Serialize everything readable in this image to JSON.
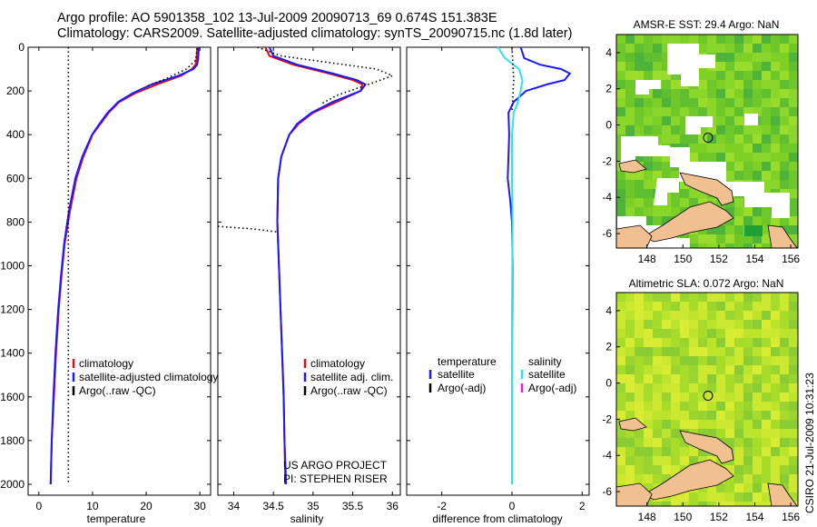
{
  "title_line1": "Argo profile: AO 5901358_102 13-Jul-2009 20090713_69 0.674S 151.383E",
  "title_line2": "Climatology: CARS2009. Satellite-adjusted climatology: synTS_20090715.nc (1.8d later)",
  "credit": "CSIRO 21-Jul-2009 10:31:23",
  "colors": {
    "climatology": "#e01010",
    "satellite": "#1a1aff",
    "sat_salinity": "#30e0f0",
    "argo": "#000000",
    "argo_adj_sal": "#e020e0",
    "land": "#f0c090"
  },
  "chart_data": [
    {
      "id": "temperature",
      "type": "line",
      "xlabel": "temperature",
      "ylabel": "depth",
      "xlim": [
        -2,
        32
      ],
      "ylim": [
        2050,
        0
      ],
      "xticks": [
        "0",
        "10",
        "20",
        "30"
      ],
      "xtick_values": [
        0,
        10,
        20,
        30
      ],
      "yticks": [
        "0",
        "200",
        "400",
        "600",
        "800",
        "1000",
        "1200",
        "1400",
        "1600",
        "1800",
        "2000"
      ],
      "ytick_values": [
        0,
        200,
        400,
        600,
        800,
        1000,
        1200,
        1400,
        1600,
        1800,
        2000
      ],
      "legend": [
        "climatology",
        "satellite-adjusted climatology",
        "Argo(..raw -QC)"
      ],
      "series": [
        {
          "name": "climatology",
          "color": "#e01010",
          "dash": false,
          "x": [
            29.5,
            29.4,
            29.2,
            28.5,
            26.5,
            22,
            18,
            15,
            13,
            11.5,
            10,
            8.3,
            7.0,
            5.8,
            4.8,
            4.2,
            3.7,
            3.2,
            2.8,
            2.4,
            2.2
          ],
          "y": [
            0,
            50,
            80,
            100,
            130,
            170,
            210,
            250,
            300,
            350,
            400,
            500,
            600,
            750,
            900,
            1050,
            1200,
            1400,
            1600,
            1800,
            2000
          ]
        },
        {
          "name": "satellite-adjusted climatology",
          "color": "#1a1aff",
          "dash": false,
          "x": [
            29.8,
            29.7,
            29.5,
            28.8,
            26.0,
            21,
            17.5,
            14.8,
            12.8,
            11.3,
            9.9,
            8.1,
            6.8,
            5.6,
            4.7,
            4.1,
            3.6,
            3.1,
            2.7,
            2.4,
            2.2
          ],
          "y": [
            0,
            50,
            80,
            100,
            130,
            170,
            210,
            250,
            300,
            350,
            400,
            500,
            600,
            750,
            900,
            1050,
            1200,
            1400,
            1600,
            1800,
            2000
          ]
        },
        {
          "name": "Argo raw",
          "color": "#000000",
          "dash": true,
          "x": [
            29.5,
            29.2,
            27.5,
            24,
            20
          ],
          "y": [
            5,
            60,
            100,
            140,
            180
          ]
        },
        {
          "name": "Argo raw -QC",
          "color": "#000000",
          "dash": true,
          "x": [
            5.5,
            5.5
          ],
          "y": [
            0,
            2000
          ]
        }
      ],
      "annotations": []
    },
    {
      "id": "salinity",
      "type": "line",
      "xlabel": "salinity",
      "ylabel": "",
      "xlim": [
        33.8,
        36.1
      ],
      "ylim": [
        2050,
        0
      ],
      "xticks": [
        "34",
        "34.5",
        "35",
        "35.5",
        "36"
      ],
      "xtick_values": [
        34,
        34.5,
        35,
        35.5,
        36
      ],
      "yticks": [],
      "ytick_values": [],
      "legend": [
        "climatology",
        "satellite adj. clim.",
        "Argo(..raw -QC)"
      ],
      "series": [
        {
          "name": "climatology",
          "color": "#e01010",
          "dash": false,
          "x": [
            34.4,
            34.45,
            34.75,
            35.2,
            35.5,
            35.62,
            35.6,
            35.3,
            35.0,
            34.82,
            34.7,
            34.6,
            34.56,
            34.55,
            34.57,
            34.59,
            34.61,
            34.63,
            34.64,
            34.65
          ],
          "y": [
            0,
            40,
            80,
            120,
            150,
            170,
            200,
            250,
            300,
            350,
            400,
            500,
            600,
            800,
            1000,
            1200,
            1400,
            1600,
            1800,
            2000
          ]
        },
        {
          "name": "satellite adj. clim.",
          "color": "#1a1aff",
          "dash": false,
          "x": [
            34.45,
            34.5,
            34.8,
            35.25,
            35.55,
            35.66,
            35.6,
            35.25,
            34.98,
            34.8,
            34.7,
            34.6,
            34.56,
            34.55,
            34.57,
            34.59,
            34.61,
            34.63,
            34.64,
            34.66
          ],
          "y": [
            0,
            40,
            80,
            120,
            150,
            170,
            200,
            250,
            300,
            350,
            400,
            500,
            600,
            800,
            1000,
            1200,
            1400,
            1600,
            1800,
            2000
          ]
        },
        {
          "name": "Argo raw",
          "color": "#000000",
          "dash": true,
          "x": [
            34.3,
            34.6,
            35.2,
            35.8,
            36.0,
            35.7,
            35.3,
            35.1
          ],
          "y": [
            0,
            40,
            70,
            100,
            130,
            170,
            220,
            260
          ]
        },
        {
          "name": "Argo raw deep",
          "color": "#000000",
          "dash": true,
          "x": [
            33.8,
            34.2,
            34.55
          ],
          "y": [
            820,
            830,
            845
          ]
        }
      ],
      "annotations": [
        "US ARGO PROJECT",
        "PI: STEPHEN RISER"
      ]
    },
    {
      "id": "difference",
      "type": "line",
      "xlabel": "difference from climatology",
      "ylabel": "",
      "xlim": [
        -3,
        2.2
      ],
      "ylim": [
        2050,
        0
      ],
      "xticks": [
        "-2",
        "0",
        "2"
      ],
      "xtick_values": [
        -2,
        0,
        2
      ],
      "yticks": [],
      "ytick_values": [],
      "legend_temperature": {
        "title": "temperature",
        "items": [
          "satellite",
          "Argo(-adj)"
        ]
      },
      "legend_salinity": {
        "title": "salinity",
        "items": [
          "satellite",
          "Argo(-adj)"
        ]
      },
      "series": [
        {
          "name": "temperature satellite",
          "color": "#1a1aff",
          "dash": false,
          "x": [
            0.25,
            0.35,
            0.8,
            1.4,
            1.65,
            1.5,
            1.0,
            0.4,
            0.05,
            -0.1,
            -0.08,
            -0.12,
            -0.05,
            0.0,
            0.02,
            0.0,
            0.0,
            0.0
          ],
          "y": [
            0,
            50,
            80,
            100,
            120,
            150,
            170,
            200,
            250,
            300,
            400,
            600,
            700,
            800,
            1000,
            1400,
            1800,
            2000
          ]
        },
        {
          "name": "salinity satellite",
          "color": "#30e0f0",
          "dash": false,
          "x": [
            -0.4,
            -0.2,
            0.2,
            0.3,
            0.25,
            0.15,
            0.05,
            0.0,
            0.0,
            0.02,
            0.0,
            0.0,
            0.0
          ],
          "y": [
            0,
            50,
            100,
            150,
            200,
            260,
            300,
            400,
            600,
            800,
            1200,
            1600,
            2000
          ]
        },
        {
          "name": "temperature Argo(-adj)",
          "color": "#000000",
          "dash": true,
          "x": [
            0.0,
            0.05,
            0.0
          ],
          "y": [
            0,
            150,
            300
          ]
        }
      ],
      "annotations": []
    }
  ],
  "maps": [
    {
      "id": "sst",
      "title": "AMSR-E SST: 29.4 Argo: NaN",
      "xticks": [
        "148",
        "150",
        "152",
        "154",
        "156"
      ],
      "yticks": [
        "4",
        "2",
        "0",
        "-2",
        "-4",
        "-6"
      ],
      "xtick_values": [
        148,
        150,
        152,
        154,
        156
      ],
      "ytick_values": [
        4,
        2,
        0,
        -2,
        -4,
        -6
      ],
      "lon_range": [
        146.3,
        156.4
      ],
      "lat_range": [
        -6.8,
        5.0
      ],
      "float_position": {
        "lon": 151.4,
        "lat": -0.7
      }
    },
    {
      "id": "sla",
      "title": "Altimetric SLA: 0.072 Argo: NaN",
      "xticks": [
        "148",
        "150",
        "152",
        "154",
        "156"
      ],
      "yticks": [
        "4",
        "2",
        "0",
        "-2",
        "-4",
        "-6"
      ],
      "xtick_values": [
        148,
        150,
        152,
        154,
        156
      ],
      "ytick_values": [
        4,
        2,
        0,
        -2,
        -4,
        -6
      ],
      "lon_range": [
        146.3,
        156.4
      ],
      "lat_range": [
        -6.8,
        5.0
      ],
      "float_position": {
        "lon": 151.4,
        "lat": -0.7
      }
    }
  ]
}
